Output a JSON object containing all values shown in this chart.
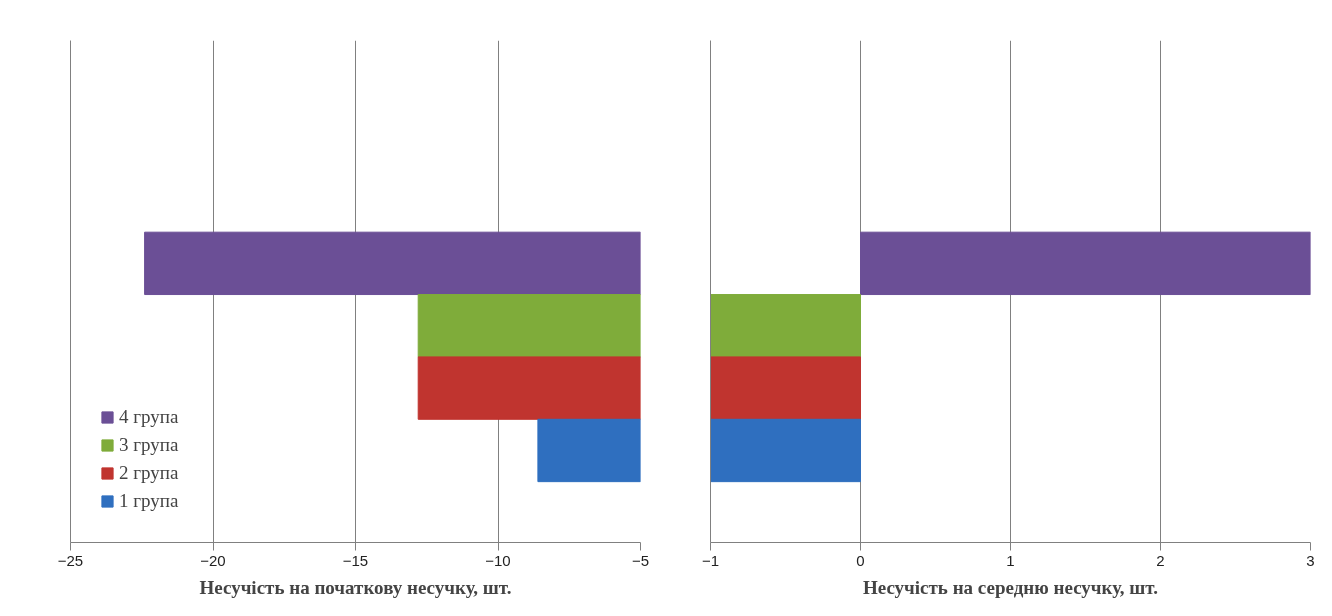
{
  "chart_data": [
    {
      "type": "bar",
      "orientation": "horizontal",
      "xlabel": "Несучість на початкову несучку, шт.",
      "categories": [
        null
      ],
      "xlim": [
        -25,
        -5
      ],
      "xticks": [
        -25,
        -20,
        -15,
        -10,
        -5
      ],
      "grid": "x",
      "legend": "bottom left",
      "series": [
        {
          "name": "4 група",
          "color": "#6b4f96",
          "values": [
            -17.4
          ],
          "base": [
            -5
          ]
        },
        {
          "name": "3 група",
          "color": "#7fac3a",
          "values": [
            -7.8
          ],
          "base": [
            -5
          ]
        },
        {
          "name": "2 група",
          "color": "#c0342f",
          "values": [
            -7.8
          ],
          "base": [
            -5
          ]
        },
        {
          "name": "1 група",
          "color": "#2f6fbf",
          "values": [
            -3.6
          ],
          "base": [
            -5
          ]
        }
      ]
    },
    {
      "type": "bar",
      "orientation": "horizontal",
      "xlabel": "Несучість на середню несучку, шт.",
      "categories": [
        null
      ],
      "xlim": [
        -1,
        3
      ],
      "xticks": [
        -1,
        0,
        1,
        2,
        3
      ],
      "grid": "x",
      "series": [
        {
          "color": "#6b4f96",
          "values": [
            3
          ]
        },
        {
          "color": "#7fac3a",
          "values": [
            -1
          ]
        },
        {
          "color": "#c0342f",
          "values": [
            -1
          ]
        },
        {
          "color": "#2f6fbf",
          "values": [
            -1
          ]
        }
      ]
    }
  ]
}
